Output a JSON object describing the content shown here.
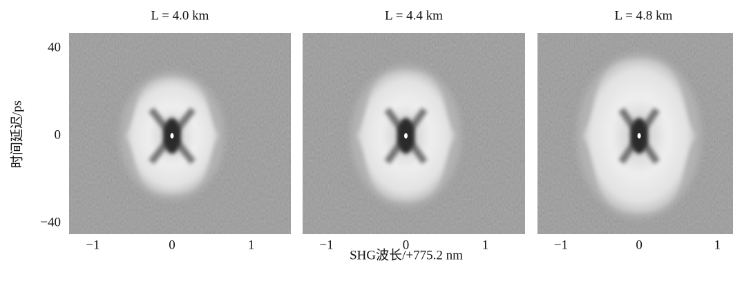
{
  "figure": {
    "xlabel": "SHG波长/+775.2 nm",
    "ylabel": "时间延迟/ps"
  },
  "chart_data": [
    {
      "type": "image",
      "title": "L = 4.0 km",
      "xlim": [
        -1.3,
        1.5
      ],
      "ylim": [
        -45,
        47
      ],
      "xticks": [
        {
          "value": -1,
          "label": "−1"
        },
        0,
        1
      ],
      "yticks": [
        {
          "value": -40,
          "label": "−40"
        },
        0,
        40
      ]
    },
    {
      "type": "image",
      "title": "L = 4.4 km",
      "xlim": [
        -1.3,
        1.5
      ],
      "ylim": [
        -45,
        47
      ],
      "xticks": [
        {
          "value": -1,
          "label": "−1"
        },
        0,
        1
      ]
    },
    {
      "type": "image",
      "title": "L = 4.8 km",
      "xlim": [
        -1.3,
        1.2
      ],
      "ylim": [
        -45,
        47
      ],
      "xticks": [
        {
          "value": -1,
          "label": "−1"
        },
        0,
        1
      ]
    }
  ]
}
